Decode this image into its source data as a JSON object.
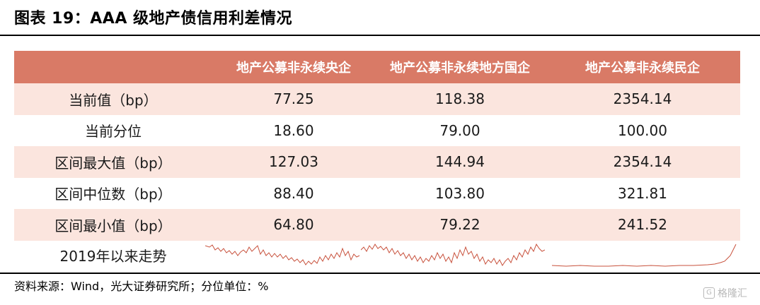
{
  "title": "图表 19：AAA 级地产债信用利差情况",
  "table": {
    "headers": [
      "",
      "地产公募非永续央企",
      "地产公募非永续地方国企",
      "地产公募非永续民企"
    ],
    "rows": [
      {
        "label": "当前值（bp）",
        "values": [
          "77.25",
          "118.38",
          "2354.14"
        ]
      },
      {
        "label": "当前分位",
        "values": [
          "18.60",
          "79.00",
          "100.00"
        ]
      },
      {
        "label": "区间最大值（bp）",
        "values": [
          "127.03",
          "144.94",
          "2354.14"
        ]
      },
      {
        "label": "区间中位数（bp）",
        "values": [
          "88.40",
          "103.80",
          "321.81"
        ]
      },
      {
        "label": "区间最小值（bp）",
        "values": [
          "64.80",
          "79.22",
          "241.52"
        ]
      }
    ],
    "trend_label": "2019年以来走势"
  },
  "source": "资料来源：Wind，光大证券研究所；分位单位：%",
  "watermark": "格隆汇",
  "colors": {
    "header_bg": "#d97a66",
    "shade_bg": "#fbe5de",
    "sparkline": "#c8513c"
  }
}
